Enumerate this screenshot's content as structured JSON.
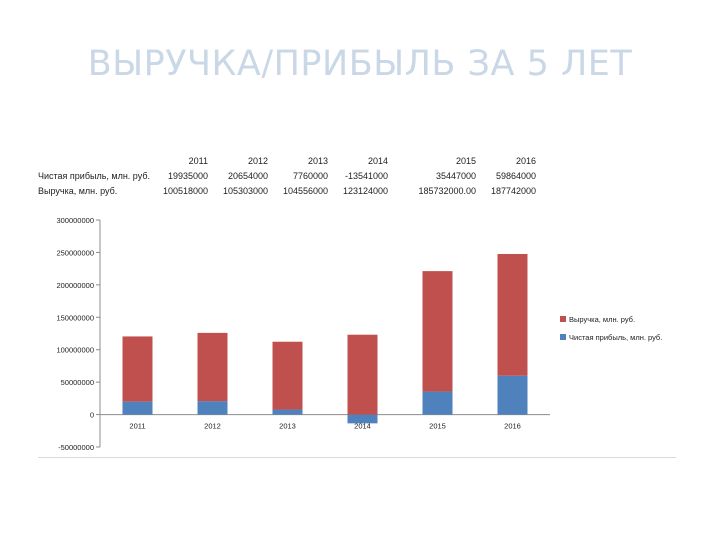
{
  "title": "ВЫРУЧКА/ПРИБЫЛЬ ЗА 5 ЛЕТ",
  "colors": {
    "revenue": "#c0504d",
    "profit": "#4f81bd",
    "title": "#c9d7e6"
  },
  "table": {
    "years": [
      "2011",
      "2012",
      "2013",
      "2014",
      "2015",
      "2016"
    ],
    "rows": [
      {
        "label": "Чистая прибыль, млн. руб.",
        "values": [
          "19935000",
          "20654000",
          "7760000",
          "-13541000",
          "35447000",
          "59864000"
        ]
      },
      {
        "label": "Выручка, млн. руб.",
        "values": [
          "100518000",
          "105303000",
          "104556000",
          "123124000",
          "185732000.00",
          "187742000"
        ]
      }
    ]
  },
  "chart_data": {
    "type": "bar",
    "stacked": true,
    "categories": [
      "2011",
      "2012",
      "2013",
      "2014",
      "2015",
      "2016"
    ],
    "series": [
      {
        "name": "Чистая прибыль, млн. руб.",
        "values": [
          19935000,
          20654000,
          7760000,
          -13541000,
          35447000,
          59864000
        ]
      },
      {
        "name": "Выручка, млн. руб.",
        "values": [
          100518000,
          105303000,
          104556000,
          123124000,
          185732000,
          187742000
        ]
      }
    ],
    "legend": [
      "Выручка, млн. руб.",
      "Чистая прибыль, млн. руб."
    ],
    "y_ticks": [
      "300000000",
      "250000000",
      "200000000",
      "150000000",
      "100000000",
      "50000000",
      "0",
      "-50000000"
    ],
    "ylim": [
      -50000000,
      300000000
    ],
    "grid": false,
    "legend_position": "right"
  }
}
